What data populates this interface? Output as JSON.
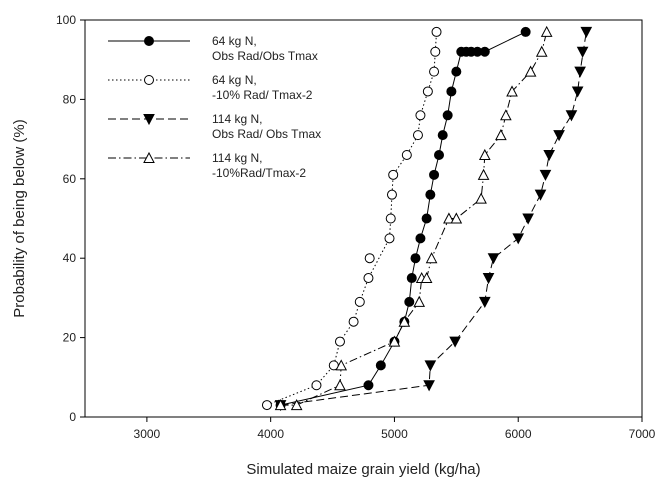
{
  "chart_data": {
    "type": "line",
    "title": "",
    "xlabel": "Simulated maize grain yield (kg/ha)",
    "ylabel": "Probability of being below (%)",
    "xlim": [
      2500,
      7000
    ],
    "ylim": [
      0,
      100
    ],
    "xticks": [
      3000,
      4000,
      5000,
      6000,
      7000
    ],
    "yticks": [
      0,
      20,
      40,
      60,
      80,
      100
    ],
    "grid": false,
    "legend_position": "top-left",
    "series": [
      {
        "name": "64 kg N, Obs Rad/Obs Tmax",
        "legend_lines": [
          "64 kg N,",
          "Obs Rad/Obs Tmax"
        ],
        "line_style": "solid",
        "marker": "filled-circle",
        "x": [
          4080,
          4790,
          4890,
          5000,
          5080,
          5120,
          5140,
          5170,
          5210,
          5260,
          5290,
          5320,
          5360,
          5390,
          5430,
          5460,
          5500,
          5540,
          5580,
          5620,
          5670,
          5730,
          6060
        ],
        "y": [
          3,
          8,
          13,
          19,
          24,
          29,
          35,
          40,
          45,
          50,
          56,
          61,
          66,
          71,
          76,
          82,
          87,
          92,
          92,
          92,
          92,
          92,
          97
        ]
      },
      {
        "name": "64 kg N, -10% Rad/ Tmax-2",
        "legend_lines": [
          "64 kg N,",
          "-10% Rad/ Tmax-2"
        ],
        "line_style": "dotted",
        "marker": "open-circle",
        "x": [
          3970,
          4370,
          4510,
          4560,
          4670,
          4720,
          4790,
          4960,
          4970,
          4980,
          4990,
          5100,
          5190,
          5210,
          5270,
          5320,
          5340
        ],
        "y": [
          3,
          8,
          13,
          19,
          24,
          29,
          35,
          45,
          50,
          56,
          61,
          66,
          71,
          76,
          82,
          87,
          97
        ],
        "extra_points": [
          {
            "x": 4800,
            "y": 40
          },
          {
            "x": 5330,
            "y": 92
          }
        ]
      },
      {
        "name": "114 kg N, Obs Rad/ Obs Tmax",
        "legend_lines": [
          "114 kg N,",
          "Obs Rad/ Obs Tmax"
        ],
        "line_style": "dashed",
        "marker": "filled-triangle-down",
        "x": [
          4080,
          5280,
          5290,
          5490,
          5730,
          5760,
          5800,
          6000,
          6080,
          6180,
          6220,
          6250,
          6330,
          6430,
          6480,
          6500,
          6550
        ],
        "y": [
          3,
          8,
          13,
          19,
          29,
          35,
          40,
          45,
          50,
          56,
          61,
          66,
          71,
          76,
          82,
          87,
          97
        ],
        "extra_points": [
          {
            "x": 6520,
            "y": 92
          }
        ]
      },
      {
        "name": "114 kg N, -10%Rad/Tmax-2",
        "legend_lines": [
          "114 kg N,",
          "-10%Rad/Tmax-2"
        ],
        "line_style": "dash-dot",
        "marker": "open-triangle-up",
        "x": [
          4080,
          4210,
          4560,
          4570,
          5000,
          5080,
          5200,
          5220,
          5260,
          5300,
          5440,
          5500,
          5700,
          5720,
          5730,
          5860,
          5900,
          5950,
          6100,
          6190,
          6230
        ],
        "y": [
          3,
          3,
          8,
          13,
          19,
          24,
          29,
          35,
          35,
          40,
          50,
          50,
          55,
          61,
          66,
          71,
          76,
          82,
          87,
          92,
          97
        ]
      }
    ]
  }
}
